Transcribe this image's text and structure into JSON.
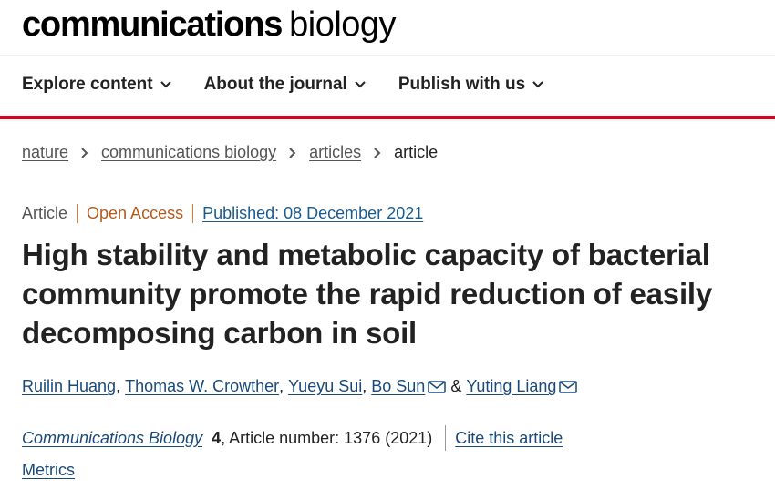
{
  "masthead": {
    "bold": "communications",
    "light": "biology"
  },
  "nav": [
    {
      "label": "Explore content"
    },
    {
      "label": "About the journal"
    },
    {
      "label": "Publish with us"
    }
  ],
  "breadcrumb": {
    "items": [
      "nature",
      "communications biology",
      "articles"
    ],
    "current": "article"
  },
  "meta": {
    "type": "Article",
    "access": "Open Access",
    "published": "Published: 08 December 2021"
  },
  "title": "High stability and metabolic capacity of bacterial community promote the rapid reduction of easily decomposing carbon in soil",
  "authors": {
    "a1": "Ruilin Huang",
    "a2": "Thomas W. Crowther",
    "a3": "Yueyu Sui",
    "a4": "Bo Sun",
    "a5": "Yuting Liang",
    "comma": ",",
    "amp": "&"
  },
  "citation": {
    "journal": "Communications Biology",
    "volume": "4",
    "rest": ", Article number: 1376 (2021)",
    "cite_link": "Cite this article"
  },
  "metrics": "Metrics",
  "colors": {
    "accent_red": "#e0001a",
    "link_blue": "#1a4a7a",
    "open_access": "#b35a1f"
  }
}
